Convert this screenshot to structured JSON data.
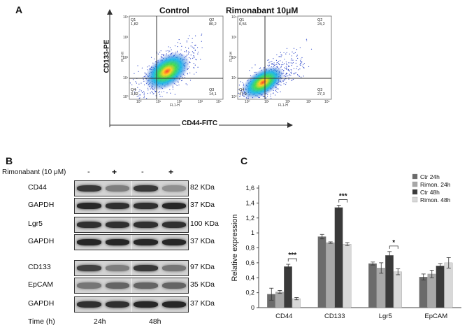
{
  "panel_a": {
    "letter": "A",
    "y_axis_label": "CD133-PE",
    "x_axis_label": "CD44-FITC",
    "plots": [
      {
        "title": "Control",
        "y_label": "FL2-H",
        "x_label": "FL1-H",
        "q1": [
          "Q1",
          "1,82"
        ],
        "q2": [
          "Q2",
          "80,2"
        ],
        "q3": [
          "Q3",
          "14,1"
        ],
        "q4": [
          "Q4",
          "3,82"
        ],
        "ticks": [
          "10⁰",
          "10¹",
          "10²",
          "10³",
          "10⁴"
        ]
      },
      {
        "title": "Rimonabant 10μM",
        "y_label": "FL2-H",
        "x_label": "FL1-H",
        "q1": [
          "Q1",
          "0,56"
        ],
        "q2": [
          "Q2",
          "24,2"
        ],
        "q3": [
          "Q3",
          "27,3"
        ],
        "q4": [
          "Q4",
          "47,9"
        ],
        "ticks": [
          "10⁰",
          "10¹",
          "10²",
          "10³",
          "10⁴"
        ]
      }
    ]
  },
  "panel_b": {
    "letter": "B",
    "treatment_label": "Rimonabant (10 μM)",
    "treatment_marks": [
      "-",
      "+",
      "-",
      "+"
    ],
    "rows": [
      {
        "protein": "CD44",
        "kda": "82 KDa"
      },
      {
        "protein": "GAPDH",
        "kda": "37 KDa"
      },
      {
        "protein": "Lgr5",
        "kda": "100 KDa"
      },
      {
        "protein": "GAPDH",
        "kda": "37 KDa"
      },
      {
        "protein": "CD133",
        "kda": "97 KDa"
      },
      {
        "protein": "EpCAM",
        "kda": "35 KDa"
      },
      {
        "protein": "GAPDH",
        "kda": "37 KDa"
      }
    ],
    "time_label": "Time (h)",
    "times": [
      "24h",
      "48h"
    ]
  },
  "panel_c": {
    "letter": "C"
  },
  "chart_data": {
    "type": "bar",
    "ylabel": "Relative expression",
    "ylim": [
      0,
      1.6
    ],
    "yticks": [
      "0",
      "0,2",
      "0,4",
      "0,6",
      "0,8",
      "1",
      "1,2",
      "1,4",
      "1,6"
    ],
    "categories": [
      "CD44",
      "CD133",
      "Lgr5",
      "EpCAM"
    ],
    "series": [
      {
        "name": "Ctr 24h",
        "color": "#6b6b6b",
        "values": [
          0.18,
          0.95,
          0.59,
          0.41
        ],
        "errors": [
          0.08,
          0.03,
          0.02,
          0.04
        ]
      },
      {
        "name": "Rimon. 24h",
        "color": "#a8a8a8",
        "values": [
          0.21,
          0.87,
          0.53,
          0.45
        ],
        "errors": [
          0.02,
          0.01,
          0.07,
          0.05
        ]
      },
      {
        "name": "Ctr 48h",
        "color": "#3a3a3a",
        "values": [
          0.55,
          1.34,
          0.7,
          0.56
        ],
        "errors": [
          0.03,
          0.03,
          0.05,
          0.03
        ]
      },
      {
        "name": "Rimon. 48h",
        "color": "#d8d8d8",
        "values": [
          0.12,
          0.85,
          0.48,
          0.6
        ],
        "errors": [
          0.015,
          0.02,
          0.04,
          0.07
        ]
      }
    ],
    "significance": [
      {
        "category": "CD44",
        "label": "***"
      },
      {
        "category": "CD133",
        "label": "***"
      },
      {
        "category": "Lgr5",
        "label": "*"
      }
    ],
    "legend_position": "top-right"
  }
}
